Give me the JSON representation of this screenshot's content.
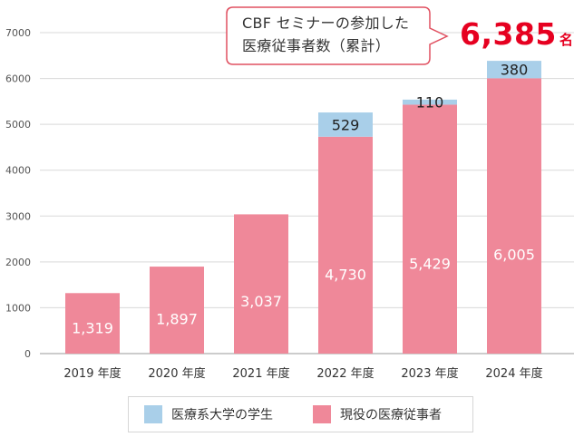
{
  "callout": {
    "line1": "CBF セミナーの参加した",
    "line2": "医療従事者数（累計）",
    "total_value": "6,385",
    "total_unit": "名"
  },
  "legend": [
    {
      "label": "医療系大学の学生",
      "color": "#a9cfe9"
    },
    {
      "label": "現役の医療従事者",
      "color": "#ef8899"
    }
  ],
  "chart_data": {
    "type": "bar",
    "stacked": true,
    "categories": [
      "2019 年度",
      "2020 年度",
      "2021 年度",
      "2022 年度",
      "2023 年度",
      "2024 年度"
    ],
    "series": [
      {
        "name": "現役の医療従事者",
        "color": "#ef8899",
        "values": [
          1319,
          1897,
          3037,
          4730,
          5429,
          6005
        ],
        "labels": [
          "1,319",
          "1,897",
          "3,037",
          "4,730",
          "5,429",
          "6,005"
        ]
      },
      {
        "name": "医療系大学の学生",
        "color": "#a9cfe9",
        "values": [
          0,
          0,
          0,
          529,
          110,
          380
        ],
        "labels": [
          "",
          "",
          "",
          "529",
          "110",
          "380"
        ]
      }
    ],
    "ylim": [
      0,
      7000
    ],
    "yticks": [
      0,
      1000,
      2000,
      3000,
      4000,
      5000,
      6000,
      7000
    ],
    "ytick_labels": [
      "0",
      "1000",
      "2000",
      "3000",
      "4000",
      "5000",
      "6000",
      "7000"
    ],
    "grid": true,
    "legend_position": "bottom"
  }
}
